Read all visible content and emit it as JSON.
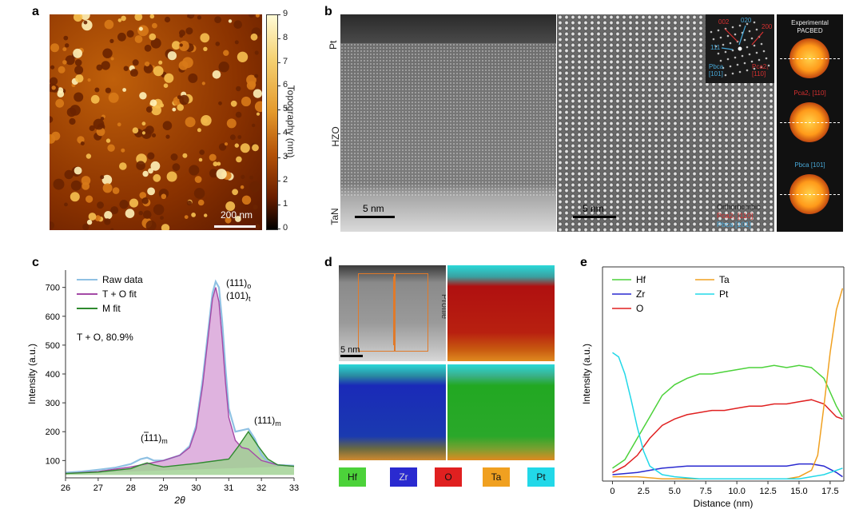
{
  "panels": {
    "a": {
      "letter": "a",
      "colorbar_ticks": [
        "9",
        "8",
        "7",
        "6",
        "5",
        "4",
        "3",
        "2",
        "1",
        "0"
      ],
      "colorbar_label": "Topography (nm)",
      "scale_bar": "200 nm"
    },
    "b": {
      "letter": "b",
      "layers": {
        "top": "Pt",
        "middle": "HZO",
        "bottom": "TaN"
      },
      "scale_left": "5 nm",
      "scale_right": "5 nm",
      "fft_labels": {
        "l002": "002",
        "l020": "020",
        "l111": "111",
        "l200": "200",
        "pbca": "Pbca\n[101]",
        "pca2": "Pca2₁\n[110]"
      },
      "legend": {
        "line1": "Orthorhombic",
        "line2": "Pca2₁ [110]",
        "line3": "Pbca [101]"
      },
      "pacbed": {
        "title_line1": "Experimental",
        "title_line2": "PACBED",
        "pca2_label": "Pca2₁ [110]",
        "pbca_label": "Pbca [101]"
      }
    },
    "c": {
      "letter": "c",
      "legend": [
        "Raw data",
        "T + O fit",
        "M fit"
      ],
      "annotation": "T + O, 80.9%",
      "peak_labels": {
        "p111o": "(111)",
        "p111o_sub": "o",
        "p101t": "(101)",
        "p101t_sub": "t",
        "p111m_bar": "(111)",
        "p111m_bar_sub": "m",
        "p111m": "(111)",
        "p111m_sub": "m"
      }
    },
    "d": {
      "letter": "d",
      "profile_label": "Profile",
      "scale_bar": "5 nm",
      "elements": [
        "Hf",
        "Zr",
        "O",
        "Ta",
        "Pt"
      ]
    },
    "e": {
      "letter": "e"
    }
  },
  "colors": {
    "raw": "#8fc1e3",
    "to_fit": "#a44aa6",
    "to_fill": "#d9a6d9",
    "m_fit": "#2f8a2f",
    "m_fill": "#9ccf8e",
    "Hf": "#4cd23a",
    "Zr": "#2a2ad0",
    "O": "#e02020",
    "Ta": "#f0a020",
    "Pt": "#22d8e8"
  },
  "chart_data": [
    {
      "type": "line",
      "id": "xrd",
      "xlabel": "2θ",
      "ylabel": "Intensity (a.u.)",
      "xlim": [
        26,
        33
      ],
      "ylim": [
        40,
        760
      ],
      "xticks": [
        26,
        27,
        28,
        29,
        30,
        31,
        32,
        33
      ],
      "yticks": [
        100,
        200,
        300,
        400,
        500,
        600,
        700
      ],
      "series": [
        {
          "name": "Raw data",
          "x": [
            26.0,
            26.5,
            27.0,
            27.5,
            28.0,
            28.3,
            28.5,
            28.7,
            29.0,
            29.5,
            29.8,
            30.0,
            30.2,
            30.4,
            30.5,
            30.6,
            30.7,
            30.8,
            30.9,
            31.0,
            31.2,
            31.4,
            31.6,
            31.8,
            32.0,
            32.2,
            32.5,
            33.0
          ],
          "y": [
            58,
            62,
            68,
            75,
            88,
            105,
            110,
            100,
            100,
            118,
            150,
            220,
            380,
            580,
            680,
            720,
            700,
            580,
            420,
            280,
            200,
            205,
            210,
            175,
            120,
            95,
            85,
            82
          ]
        },
        {
          "name": "T + O fit",
          "x": [
            26.0,
            27.0,
            28.0,
            29.0,
            29.5,
            29.8,
            30.0,
            30.2,
            30.4,
            30.5,
            30.6,
            30.7,
            30.8,
            30.9,
            31.0,
            31.2,
            31.4,
            31.6,
            31.8,
            32.0,
            32.5,
            33.0
          ],
          "y": [
            55,
            62,
            78,
            100,
            118,
            145,
            210,
            360,
            560,
            660,
            700,
            650,
            520,
            370,
            250,
            170,
            145,
            140,
            120,
            100,
            85,
            80
          ]
        },
        {
          "name": "M fit",
          "x": [
            26.0,
            27.0,
            28.0,
            28.3,
            28.5,
            28.7,
            29.0,
            30.0,
            31.0,
            31.3,
            31.6,
            31.9,
            32.2,
            32.5,
            33.0
          ],
          "y": [
            55,
            60,
            72,
            85,
            92,
            85,
            78,
            90,
            105,
            150,
            200,
            150,
            105,
            85,
            80
          ]
        }
      ]
    },
    {
      "type": "line",
      "id": "eds-profile",
      "xlabel": "Distance (nm)",
      "ylabel": "Intensity (a.u.)",
      "xlim": [
        -0.8,
        18.6
      ],
      "ylim": [
        0,
        1
      ],
      "xticks": [
        0,
        2.5,
        5.0,
        7.5,
        10.0,
        12.5,
        15.0,
        17.5
      ],
      "xtick_labels": [
        "0",
        "2.5",
        "5.0",
        "7.5",
        "10.0",
        "12.5",
        "15.0",
        "17.5"
      ],
      "legend": [
        "Hf",
        "Zr",
        "O",
        "Ta",
        "Pt"
      ],
      "series": [
        {
          "name": "Hf",
          "x": [
            0,
            1,
            2,
            3,
            4,
            5,
            6,
            7,
            8,
            9,
            10,
            11,
            12,
            13,
            14,
            15,
            16,
            17,
            18,
            18.5
          ],
          "y": [
            0.06,
            0.1,
            0.2,
            0.3,
            0.4,
            0.45,
            0.48,
            0.5,
            0.5,
            0.51,
            0.52,
            0.53,
            0.53,
            0.54,
            0.53,
            0.54,
            0.53,
            0.48,
            0.35,
            0.3
          ]
        },
        {
          "name": "Zr",
          "x": [
            0,
            2,
            4,
            6,
            8,
            10,
            12,
            14,
            15,
            16,
            17,
            18,
            18.5
          ],
          "y": [
            0.03,
            0.04,
            0.06,
            0.07,
            0.07,
            0.07,
            0.07,
            0.07,
            0.08,
            0.08,
            0.07,
            0.04,
            0.02
          ]
        },
        {
          "name": "O",
          "x": [
            0,
            1,
            2,
            3,
            4,
            5,
            6,
            7,
            8,
            9,
            10,
            11,
            12,
            13,
            14,
            15,
            16,
            17,
            18,
            18.5
          ],
          "y": [
            0.04,
            0.07,
            0.12,
            0.2,
            0.26,
            0.29,
            0.31,
            0.32,
            0.33,
            0.33,
            0.34,
            0.35,
            0.35,
            0.36,
            0.36,
            0.37,
            0.38,
            0.36,
            0.3,
            0.29
          ]
        },
        {
          "name": "Ta",
          "x": [
            0,
            2,
            4,
            6,
            8,
            10,
            12,
            14,
            15,
            16,
            16.5,
            17,
            17.5,
            18,
            18.5
          ],
          "y": [
            0.02,
            0.02,
            0.01,
            0.01,
            0.01,
            0.01,
            0.01,
            0.01,
            0.02,
            0.05,
            0.12,
            0.35,
            0.6,
            0.8,
            0.9
          ]
        },
        {
          "name": "Pt",
          "x": [
            0,
            0.5,
            1,
            1.5,
            2,
            2.5,
            3,
            4,
            5,
            7,
            10,
            13,
            15,
            16,
            17,
            18,
            18.5
          ],
          "y": [
            0.6,
            0.58,
            0.5,
            0.38,
            0.25,
            0.14,
            0.07,
            0.03,
            0.02,
            0.01,
            0.01,
            0.01,
            0.01,
            0.02,
            0.03,
            0.05,
            0.06
          ]
        }
      ]
    }
  ]
}
